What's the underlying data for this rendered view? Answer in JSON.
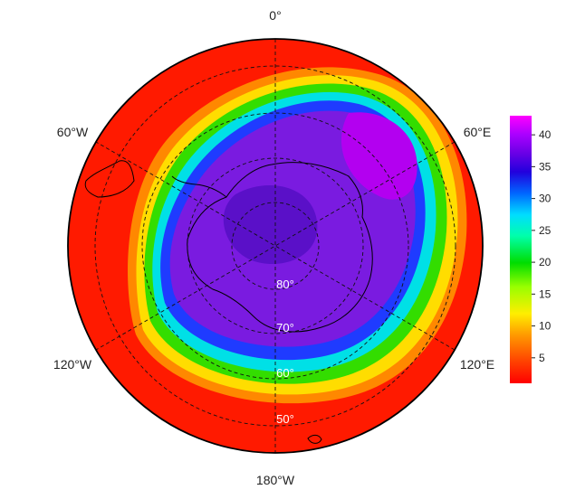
{
  "map": {
    "projection": "south-polar-stereographic",
    "longitude_labels": [
      {
        "key": "lon-0",
        "text": "0°"
      },
      {
        "key": "lon-60e",
        "text": "60°E"
      },
      {
        "key": "lon-120e",
        "text": "120°E"
      },
      {
        "key": "lon-180w",
        "text": "180°W"
      },
      {
        "key": "lon-120w",
        "text": "120°W"
      },
      {
        "key": "lon-60w",
        "text": "60°W"
      }
    ],
    "latitude_labels": [
      {
        "key": "lat-80",
        "text": "80°"
      },
      {
        "key": "lat-70",
        "text": "70°"
      },
      {
        "key": "lat-60",
        "text": "60°"
      },
      {
        "key": "lat-50",
        "text": "50°"
      }
    ],
    "colors": {
      "background": "#ffffff",
      "grid": "#111111",
      "latitude_label": "#ffffff"
    }
  },
  "colorbar": {
    "min": 1,
    "max": 43,
    "ticks": [
      "5",
      "10",
      "15",
      "20",
      "25",
      "30",
      "35",
      "40"
    ],
    "colors": [
      "#ff0000",
      "#ff4000",
      "#ff9900",
      "#ffee00",
      "#99ff00",
      "#00dd00",
      "#00ffaa",
      "#00ddff",
      "#0066ff",
      "#2200dd",
      "#6a00e6",
      "#aa00ff",
      "#ff00ff"
    ]
  }
}
